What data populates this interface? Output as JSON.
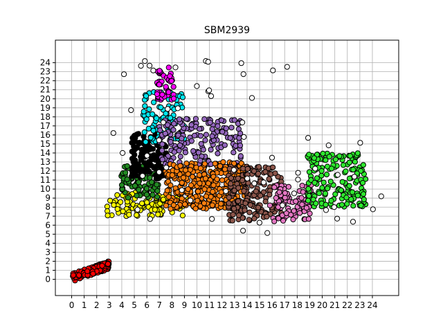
{
  "chart_data": {
    "type": "scatter",
    "title": "SBM2939",
    "xlabel": "",
    "ylabel": "",
    "xlim": [
      -1.3,
      26.1
    ],
    "ylim": [
      -1.8,
      26.5
    ],
    "xticks": [
      "0",
      "1",
      "2",
      "3",
      "4",
      "5",
      "6",
      "7",
      "8",
      "9",
      "10",
      "11",
      "12",
      "13",
      "14",
      "15",
      "16",
      "17",
      "18",
      "19",
      "20",
      "21",
      "22",
      "23",
      "24"
    ],
    "yticks": [
      "0",
      "1",
      "2",
      "3",
      "4",
      "5",
      "6",
      "7",
      "8",
      "9",
      "10",
      "11",
      "12",
      "13",
      "14",
      "15",
      "16",
      "17",
      "18",
      "19",
      "20",
      "21",
      "22",
      "23",
      "24"
    ],
    "grid": true,
    "legend": "none",
    "marker_edge_color": "#000000",
    "clusters": [
      {
        "color": "#ff0000",
        "x_range": [
          0.0,
          3.0
        ],
        "y_range": [
          0.0,
          2.0
        ],
        "n": 140,
        "shape": "band"
      },
      {
        "color": "#ffff00",
        "x_range": [
          2.8,
          9.5
        ],
        "y_range": [
          7.0,
          9.6
        ],
        "n": 110
      },
      {
        "color": "#228b22",
        "x_range": [
          3.9,
          7.0
        ],
        "y_range": [
          9.0,
          12.6
        ],
        "n": 90
      },
      {
        "color": "#000000",
        "x_range": [
          4.8,
          7.6
        ],
        "y_range": [
          11.0,
          16.2
        ],
        "n": 130
      },
      {
        "color": "#00e5ee",
        "x_range": [
          5.7,
          9.0
        ],
        "y_range": [
          15.0,
          20.8
        ],
        "n": 90
      },
      {
        "color": "#ff00ff",
        "x_range": [
          6.8,
          8.2
        ],
        "y_range": [
          19.5,
          23.5
        ],
        "n": 45
      },
      {
        "color": "#9467bd",
        "x_range": [
          7.0,
          13.5
        ],
        "y_range": [
          12.4,
          17.8
        ],
        "n": 170
      },
      {
        "color": "#ff7f0e",
        "x_range": [
          7.5,
          13.8
        ],
        "y_range": [
          7.8,
          13.0
        ],
        "n": 320
      },
      {
        "color": "#8c564b",
        "x_range": [
          12.5,
          16.8
        ],
        "y_range": [
          6.5,
          12.5
        ],
        "n": 190
      },
      {
        "color": "#e377c2",
        "x_range": [
          15.8,
          19.2
        ],
        "y_range": [
          6.4,
          10.5
        ],
        "n": 90
      },
      {
        "color": "#2ee82e",
        "x_range": [
          18.8,
          23.5
        ],
        "y_range": [
          8.0,
          14.0
        ],
        "n": 170
      },
      {
        "color": "#ffffff",
        "x_range": [
          3.0,
          25.0
        ],
        "y_range": [
          5.0,
          24.5
        ],
        "n": 60,
        "shape": "outliers"
      }
    ]
  }
}
